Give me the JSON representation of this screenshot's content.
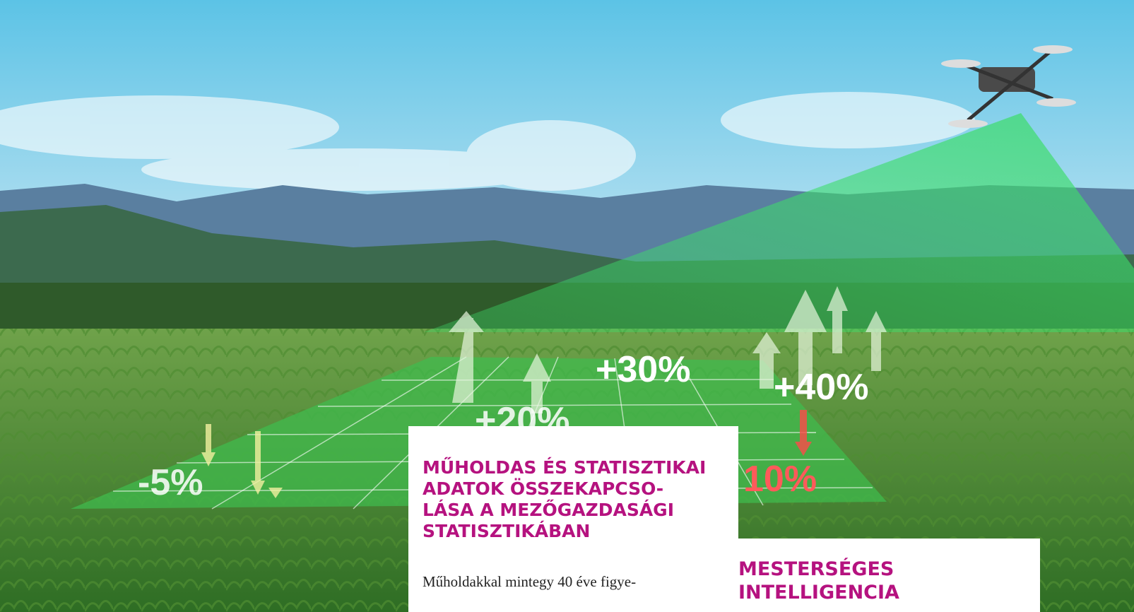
{
  "overlay_labels": [
    "-5%",
    "+30%",
    "+20%",
    "+40%",
    "10%"
  ],
  "article1": {
    "title_lines": [
      "MŰHOLDAS ÉS STATISZTIKAI",
      "ADATOK ÖSSZEKAPCSO-",
      "LÁSA A MEZŐGAZDASÁGI",
      "STATISZTIKÁBAN"
    ],
    "body_lines": [
      "Műholdakkal mintegy 40 éve figye-"
    ]
  },
  "article2": {
    "title_lines": [
      "MESTERSÉGES",
      "INTELLIGENCIA"
    ]
  }
}
